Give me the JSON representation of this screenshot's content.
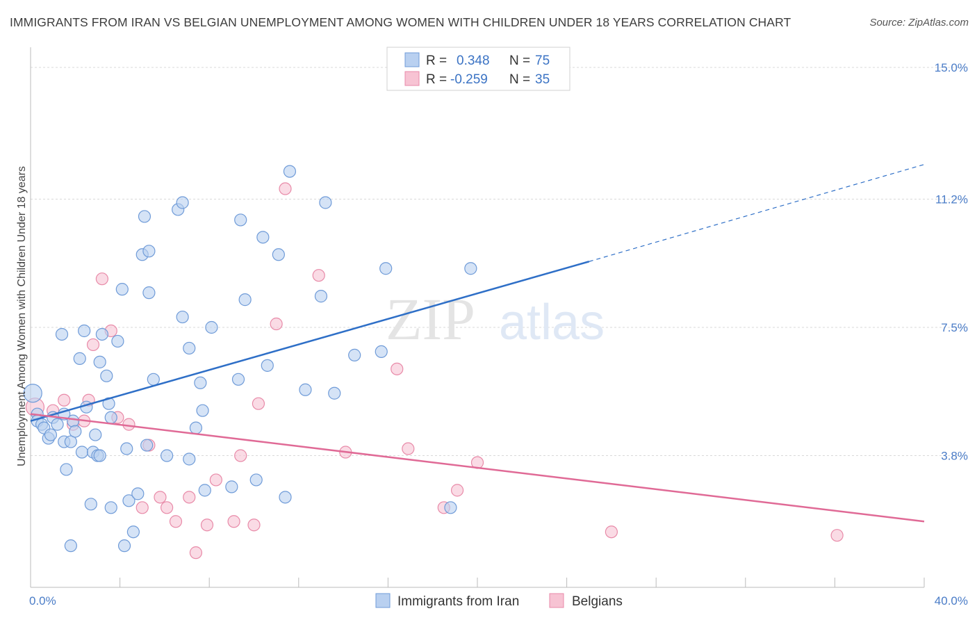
{
  "header": {
    "title": "IMMIGRANTS FROM IRAN VS BELGIAN UNEMPLOYMENT AMONG WOMEN WITH CHILDREN UNDER 18 YEARS CORRELATION CHART",
    "source": "Source: ZipAtlas.com"
  },
  "legend_box": {
    "rows": [
      {
        "r_label": "R =",
        "r_value": "0.348",
        "n_label": "N =",
        "n_value": "75"
      },
      {
        "r_label": "R =",
        "r_value": "-0.259",
        "n_label": "N =",
        "n_value": "35"
      }
    ]
  },
  "watermark": {
    "zip": "ZIP",
    "atlas": "atlas"
  },
  "colors": {
    "iran_fill": "#b9d0f0",
    "iran_stroke": "#6f9bd8",
    "iran_line": "#2e6fc7",
    "belg_fill": "#f7c3d3",
    "belg_stroke": "#e88aa8",
    "belg_line": "#e06a96",
    "grid": "#d9d9d9",
    "tick_text": "#4a7cc7"
  },
  "chart_data": {
    "type": "scatter",
    "title": "IMMIGRANTS FROM IRAN VS BELGIAN UNEMPLOYMENT AMONG WOMEN WITH CHILDREN UNDER 18 YEARS CORRELATION CHART",
    "xlabel": "",
    "ylabel": "Unemployment Among Women with Children Under 18 years",
    "xlim": [
      0,
      40
    ],
    "ylim": [
      0,
      15
    ],
    "x_tick_labels": [
      "0.0%",
      "40.0%"
    ],
    "y_ticks": [
      3.8,
      7.5,
      11.2,
      15.0
    ],
    "y_tick_labels": [
      "3.8%",
      "7.5%",
      "11.2%",
      "15.0%"
    ],
    "grid": "horizontal dashed",
    "legend_placement": "bottom-center",
    "series": [
      {
        "name": "Immigrants from Iran",
        "r": 0.348,
        "n": 75,
        "trend": {
          "x0": 0,
          "y0": 4.8,
          "x1": 25,
          "y1": 9.4,
          "dashed_to_x": 40,
          "dashed_to_y": 12.2
        },
        "points": [
          [
            0.1,
            5.6
          ],
          [
            0.3,
            5.0
          ],
          [
            0.3,
            4.8
          ],
          [
            0.5,
            4.7
          ],
          [
            0.6,
            4.6
          ],
          [
            0.8,
            4.3
          ],
          [
            0.9,
            4.4
          ],
          [
            1.0,
            4.9
          ],
          [
            1.2,
            4.7
          ],
          [
            1.4,
            7.3
          ],
          [
            1.5,
            4.2
          ],
          [
            1.6,
            3.4
          ],
          [
            1.8,
            4.2
          ],
          [
            1.9,
            4.8
          ],
          [
            2.0,
            4.5
          ],
          [
            2.2,
            6.6
          ],
          [
            2.3,
            3.9
          ],
          [
            2.4,
            7.4
          ],
          [
            2.5,
            5.2
          ],
          [
            2.7,
            2.4
          ],
          [
            2.8,
            3.9
          ],
          [
            2.9,
            4.4
          ],
          [
            3.0,
            3.8
          ],
          [
            3.1,
            3.8
          ],
          [
            3.1,
            6.5
          ],
          [
            3.2,
            7.3
          ],
          [
            3.4,
            6.1
          ],
          [
            3.6,
            4.9
          ],
          [
            3.5,
            5.3
          ],
          [
            3.9,
            7.1
          ],
          [
            4.1,
            8.6
          ],
          [
            4.3,
            4.0
          ],
          [
            4.4,
            2.5
          ],
          [
            4.6,
            1.6
          ],
          [
            4.8,
            2.7
          ],
          [
            5.0,
            9.6
          ],
          [
            5.1,
            10.7
          ],
          [
            5.2,
            4.1
          ],
          [
            5.3,
            9.7
          ],
          [
            5.5,
            6.0
          ],
          [
            6.1,
            3.8
          ],
          [
            6.6,
            10.9
          ],
          [
            6.8,
            11.1
          ],
          [
            7.1,
            6.9
          ],
          [
            7.4,
            4.6
          ],
          [
            7.6,
            5.9
          ],
          [
            7.7,
            5.1
          ],
          [
            7.8,
            2.8
          ],
          [
            8.1,
            7.5
          ],
          [
            9.3,
            6.0
          ],
          [
            9.4,
            10.6
          ],
          [
            9.6,
            8.3
          ],
          [
            10.1,
            3.1
          ],
          [
            10.4,
            10.1
          ],
          [
            10.6,
            6.4
          ],
          [
            11.1,
            9.6
          ],
          [
            11.4,
            2.6
          ],
          [
            11.6,
            12.0
          ],
          [
            12.3,
            5.7
          ],
          [
            13.0,
            8.4
          ],
          [
            13.2,
            11.1
          ],
          [
            13.6,
            5.6
          ],
          [
            14.5,
            6.7
          ],
          [
            15.7,
            6.8
          ],
          [
            15.9,
            9.2
          ],
          [
            18.8,
            2.3
          ],
          [
            19.7,
            9.2
          ],
          [
            1.8,
            1.2
          ],
          [
            4.2,
            1.2
          ],
          [
            1.5,
            5.0
          ],
          [
            6.8,
            7.8
          ],
          [
            9.0,
            2.9
          ],
          [
            7.1,
            3.7
          ],
          [
            3.6,
            2.3
          ],
          [
            5.3,
            8.5
          ]
        ]
      },
      {
        "name": "Belgians",
        "r": -0.259,
        "n": 35,
        "trend": {
          "x0": 0,
          "y0": 5.0,
          "x1": 40,
          "y1": 1.9
        },
        "points": [
          [
            0.2,
            5.2
          ],
          [
            1.0,
            5.1
          ],
          [
            1.5,
            5.4
          ],
          [
            1.9,
            4.7
          ],
          [
            2.4,
            4.8
          ],
          [
            2.8,
            7.0
          ],
          [
            3.2,
            8.9
          ],
          [
            3.6,
            7.4
          ],
          [
            3.9,
            4.9
          ],
          [
            4.4,
            4.7
          ],
          [
            5.0,
            2.3
          ],
          [
            5.3,
            4.1
          ],
          [
            5.8,
            2.6
          ],
          [
            6.1,
            2.3
          ],
          [
            6.5,
            1.9
          ],
          [
            7.1,
            2.6
          ],
          [
            7.4,
            1.0
          ],
          [
            7.9,
            1.8
          ],
          [
            8.3,
            3.1
          ],
          [
            9.1,
            1.9
          ],
          [
            9.4,
            3.8
          ],
          [
            10.0,
            1.8
          ],
          [
            10.2,
            5.3
          ],
          [
            11.0,
            7.6
          ],
          [
            11.4,
            11.5
          ],
          [
            12.9,
            9.0
          ],
          [
            14.1,
            3.9
          ],
          [
            16.4,
            6.3
          ],
          [
            16.9,
            4.0
          ],
          [
            18.5,
            2.3
          ],
          [
            19.1,
            2.8
          ],
          [
            20.0,
            3.6
          ],
          [
            26.0,
            1.6
          ],
          [
            36.1,
            1.5
          ],
          [
            2.6,
            5.4
          ]
        ]
      }
    ]
  },
  "bottom_legend": {
    "items": [
      {
        "label": "Immigrants from Iran"
      },
      {
        "label": "Belgians"
      }
    ]
  }
}
